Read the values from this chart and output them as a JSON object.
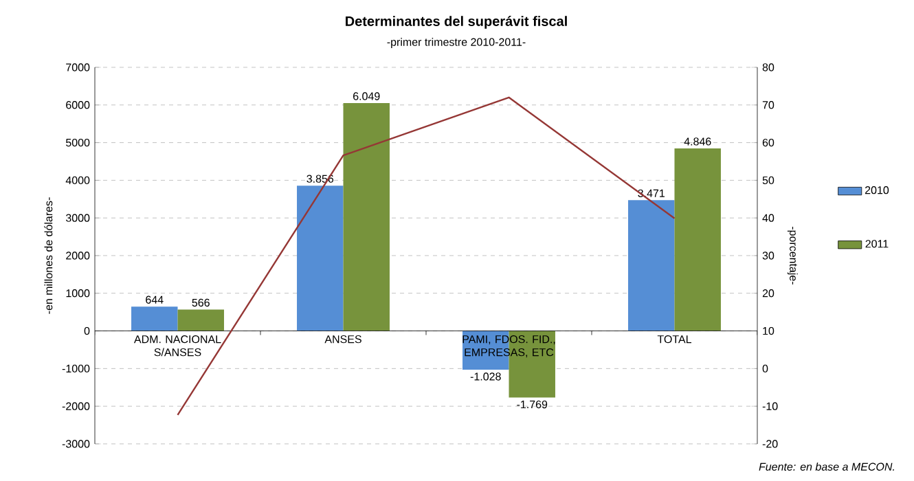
{
  "chart_data": {
    "type": "bar",
    "title": "Determinantes del superávit fiscal",
    "subtitle": "-primer trimestre 2010-2011-",
    "ylabel": "-en millones de dólares-",
    "y2label": "-porcentaje-",
    "categories": [
      "ADM. NACIONAL S/ANSES",
      "ANSES",
      "PAMI, FDOS. FID., EMPRESAS, ETC",
      "TOTAL"
    ],
    "series": [
      {
        "name": "2010",
        "color": "#558ed5",
        "values": [
          644,
          3856,
          -1028,
          3471
        ],
        "value_labels": [
          "644",
          "3.856",
          "-1.028",
          "3.471"
        ]
      },
      {
        "name": "2011",
        "color": "#77933c",
        "values": [
          566,
          6049,
          -1769,
          4846
        ],
        "value_labels": [
          "566",
          "6.049",
          "-1.769",
          "4.846"
        ]
      },
      {
        "type": "line",
        "axis": "y2",
        "color": "#953735",
        "values": [
          -12.3,
          56.6,
          72,
          39.9
        ]
      }
    ],
    "ylim": [
      -3000,
      7000
    ],
    "yticks": [
      -3000,
      -2000,
      -1000,
      0,
      1000,
      2000,
      3000,
      4000,
      5000,
      6000,
      7000
    ],
    "y2lim": [
      -20,
      80
    ],
    "y2ticks": [
      -20,
      -10,
      0,
      10,
      20,
      30,
      40,
      50,
      60,
      70,
      80
    ],
    "grid": "y",
    "legend": "right",
    "annotations": [
      "Fuente: en base a MECON."
    ]
  }
}
